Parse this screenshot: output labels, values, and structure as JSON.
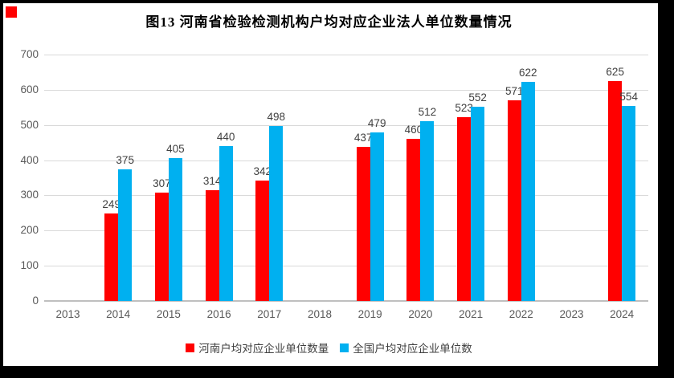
{
  "chart_data": {
    "type": "bar",
    "title": "图13 河南省检验检测机构户均对应企业法人单位数量情况",
    "categories": [
      "2013",
      "2014",
      "2015",
      "2016",
      "2017",
      "2018",
      "2019",
      "2020",
      "2021",
      "2022",
      "2023",
      "2024"
    ],
    "series": [
      {
        "name": "河南户均对应企业单位数量",
        "color": "#ff0000",
        "values": [
          null,
          249,
          307,
          314,
          342,
          null,
          437,
          460,
          523,
          571,
          null,
          625
        ]
      },
      {
        "name": "全国户均对应企业单位数",
        "color": "#00b0f0",
        "values": [
          null,
          375,
          405,
          440,
          498,
          null,
          479,
          512,
          552,
          622,
          null,
          554
        ]
      }
    ],
    "ylim": [
      0,
      700
    ],
    "yticks": [
      0,
      100,
      200,
      300,
      400,
      500,
      600,
      700
    ],
    "grid": true,
    "legend_position": "bottom",
    "data_labels": true
  },
  "colors": {
    "bar_red": "#ff0000",
    "bar_blue": "#00b0f0",
    "gridline": "#d9d9d9",
    "axis_line": "#bfbfbf",
    "tick_text": "#595959",
    "data_label_text": "#404040",
    "frame": "#000000",
    "corner_square": "#ff0000"
  }
}
